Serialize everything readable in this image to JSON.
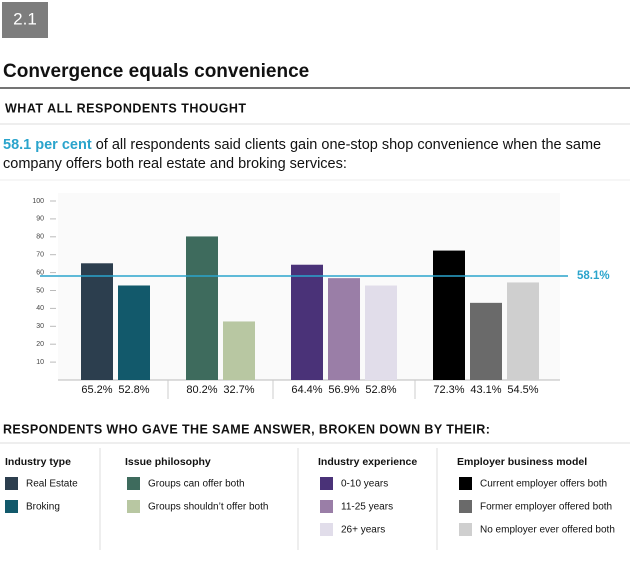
{
  "badge": "2.1",
  "title": "Convergence equals convenience",
  "subtitle": "WHAT ALL RESPONDENTS THOUGHT",
  "intro": {
    "highlight": "58.1 per cent",
    "line1": "of all respondents said clients gain one-stop shop convenience when the same",
    "line2": "company offers both real estate and broking services:"
  },
  "chart_data": {
    "type": "bar",
    "ylim": [
      0,
      100
    ],
    "yticks": [
      10,
      20,
      30,
      40,
      50,
      60,
      70,
      80,
      90,
      100
    ],
    "reference_line": {
      "value": 58.1,
      "label": "58.1%",
      "color": "#2aa4cc"
    },
    "groups": [
      {
        "name": "Industry type",
        "categories": [
          "Real Estate",
          "Broking"
        ],
        "values": [
          65.2,
          52.8
        ],
        "value_labels": [
          "65.2%",
          "52.8%"
        ],
        "colors": [
          "#2c3e4e",
          "#12596b"
        ]
      },
      {
        "name": "Issue philosophy",
        "categories": [
          "Groups can offer both",
          "Groups shouldn’t offer both"
        ],
        "values": [
          80.2,
          32.7
        ],
        "value_labels": [
          "80.2%",
          "32.7%"
        ],
        "colors": [
          "#3e6b5d",
          "#b8c7a2"
        ]
      },
      {
        "name": "Industry experience",
        "categories": [
          "0-10 years",
          "11-25 years",
          "26+ years"
        ],
        "values": [
          64.4,
          56.9,
          52.8
        ],
        "value_labels": [
          "64.4%",
          "56.9%",
          "52.8%"
        ],
        "colors": [
          "#4a3278",
          "#9a7ea7",
          "#e1ddea"
        ]
      },
      {
        "name": "Employer business model",
        "categories": [
          "Current employer offers both",
          "Former employer offered both",
          "No employer ever offered both"
        ],
        "values": [
          72.3,
          43.1,
          54.5
        ],
        "value_labels": [
          "72.3%",
          "43.1%",
          "54.5%"
        ],
        "colors": [
          "#000000",
          "#6a6a6a",
          "#cfcfcf"
        ]
      }
    ],
    "legend_title": "RESPONDENTS WHO GAVE THE SAME ANSWER, BROKEN DOWN BY THEIR:"
  }
}
